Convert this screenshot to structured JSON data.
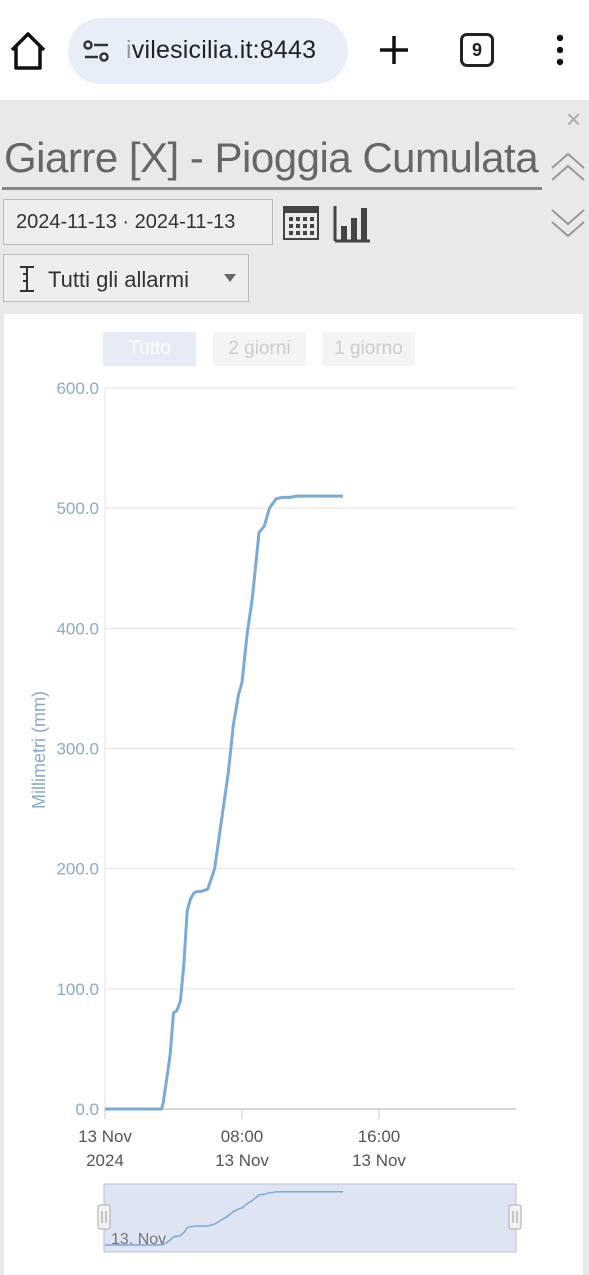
{
  "browser": {
    "url_faded": "i",
    "url_main": "vilesicilia.it:8443",
    "tab_count": "9"
  },
  "panel": {
    "title": "Giarre [X] - Pioggia Cumulata",
    "date_range": "2024-11-13 · 2024-11-13",
    "alarm_select": "Tutti gli allarmi",
    "close_glyph": "×"
  },
  "zoom_buttons": [
    {
      "label": "Tutto",
      "active": true
    },
    {
      "label": "2 giorni",
      "active": false
    },
    {
      "label": "1 giorno",
      "active": false
    }
  ],
  "colors": {
    "series": "#7aaad8",
    "axis_text": "#89a9c9",
    "navigator_bg": "#dfe4f2"
  },
  "chart_data": {
    "type": "line",
    "ylabel": "Millimetri (mm)",
    "ylim": [
      0,
      600
    ],
    "yticks": [
      "0.0",
      "100.0",
      "200.0",
      "300.0",
      "400.0",
      "500.0",
      "600.0"
    ],
    "xlim_hours": [
      0,
      24
    ],
    "xticks": [
      {
        "line1": "13 Nov",
        "line2": "2024",
        "hour": 0
      },
      {
        "line1": "08:00",
        "line2": "13 Nov",
        "hour": 8
      },
      {
        "line1": "16:00",
        "line2": "13 Nov",
        "hour": 16
      }
    ],
    "navigator_label": "13. Nov",
    "series": [
      {
        "x": [
          0,
          3.3,
          3.4,
          3.6,
          3.8,
          4.0,
          4.2,
          4.4,
          4.6,
          4.8,
          5.0,
          5.2,
          5.4,
          5.6,
          5.8,
          6.0,
          6.4,
          7.0,
          7.2,
          7.5,
          7.8,
          8.0,
          8.3,
          8.6,
          9.0,
          9.3,
          9.6,
          10.0,
          10.4,
          10.8,
          11.2,
          11.4,
          11.6,
          11.8,
          12.2,
          12.8,
          13.9
        ],
        "values": [
          0,
          0,
          5,
          25,
          45,
          80,
          82,
          90,
          120,
          165,
          175,
          180,
          181,
          181,
          182,
          183,
          200,
          260,
          280,
          320,
          345,
          355,
          395,
          425,
          480,
          485,
          500,
          508,
          509,
          509,
          510,
          510,
          510,
          510,
          510,
          510,
          510
        ]
      }
    ]
  }
}
